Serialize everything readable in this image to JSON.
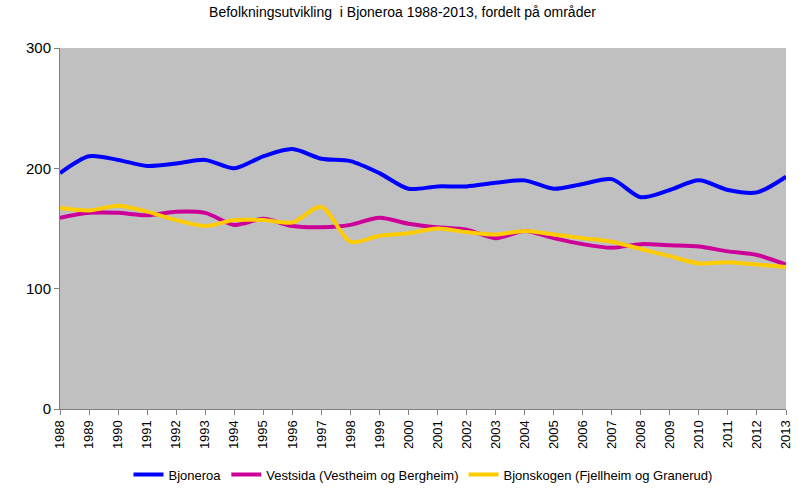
{
  "chart_data": {
    "type": "line",
    "title": "Befolkningsutvikling  i Bjoneroa 1988-2013, fordelt på områder",
    "categories": [
      "1988",
      "1989",
      "1990",
      "1991",
      "1992",
      "1993",
      "1994",
      "1995",
      "1996",
      "1997",
      "1998",
      "1999",
      "2000",
      "2001",
      "2002",
      "2003",
      "2004",
      "2005",
      "2006",
      "2007",
      "2008",
      "2009",
      "2010",
      "2011",
      "2012",
      "2013"
    ],
    "series": [
      {
        "name": "Bjoneroa",
        "color": "#0000ff",
        "values": [
          196,
          210,
          207,
          202,
          204,
          207,
          200,
          210,
          216,
          208,
          206,
          196,
          183,
          185,
          185,
          188,
          190,
          183,
          187,
          191,
          176,
          182,
          190,
          182,
          180,
          193
        ]
      },
      {
        "name": "Vestsida (Vestheim og Bergheim)",
        "color": "#cc0099",
        "values": [
          159,
          163,
          163,
          161,
          164,
          163,
          153,
          158,
          152,
          151,
          153,
          159,
          154,
          151,
          149,
          142,
          148,
          142,
          137,
          134,
          137,
          136,
          135,
          131,
          128,
          120
        ]
      },
      {
        "name": "Bjonskogen (Fjellheim og Granerud)",
        "color": "#ffcc00",
        "values": [
          167,
          165,
          169,
          164,
          157,
          152,
          157,
          157,
          155,
          168,
          139,
          144,
          146,
          150,
          147,
          145,
          148,
          145,
          142,
          139,
          133,
          127,
          121,
          122,
          120,
          118
        ]
      }
    ],
    "ylim": [
      0,
      300
    ],
    "yticks": [
      0,
      100,
      200,
      300
    ],
    "grid": false,
    "legend": "bottom"
  }
}
